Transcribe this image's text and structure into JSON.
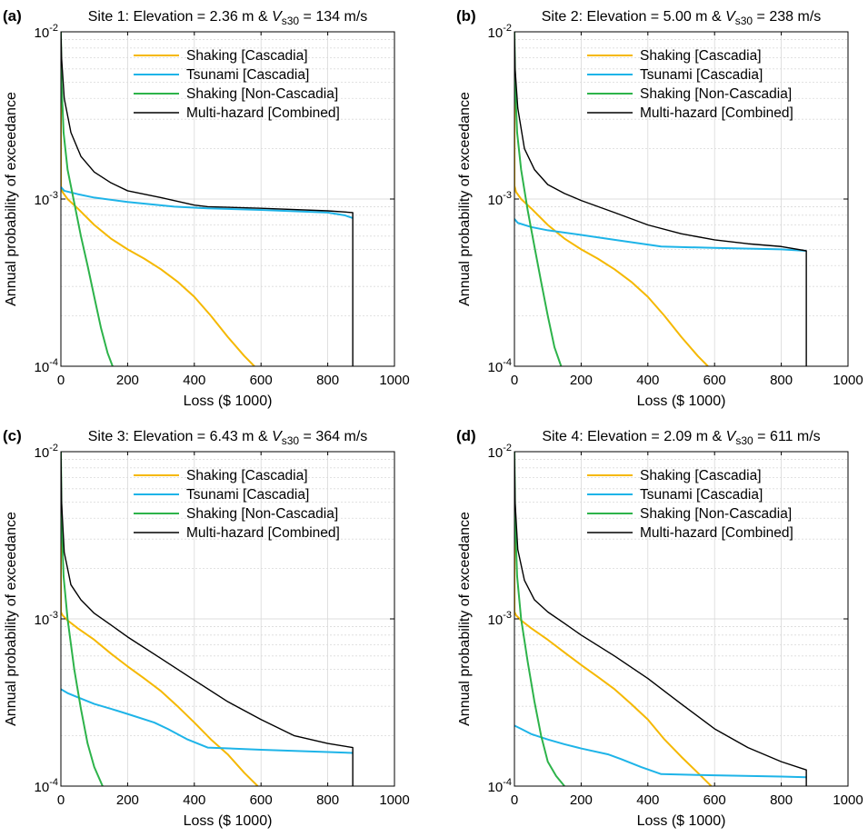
{
  "figure": {
    "ylabel": "Annual probability of exceedance",
    "xlabel": "Loss ($ 1000)"
  },
  "series_styles": [
    {
      "name": "Shaking [Cascadia]",
      "color": "#F5B800"
    },
    {
      "name": "Tsunami [Cascadia]",
      "color": "#1EB4E8"
    },
    {
      "name": "Shaking [Non-Cascadia]",
      "color": "#2DB34A"
    },
    {
      "name": "Multi-hazard [Combined]",
      "color": "#000000"
    }
  ],
  "chart_data": [
    {
      "type": "line",
      "panel_label": "(a)",
      "title_prefix": "Site 1: Elevation = 2.36 m & ",
      "title_var": "V",
      "title_sub": "s30",
      "title_suffix": " = 134 m/s",
      "xlabel": "Loss ($ 1000)",
      "ylabel": "Annual probability of exceedance",
      "xlim": [
        0,
        1000
      ],
      "ylim": [
        0.0001,
        0.01
      ],
      "yscale": "log",
      "xticks": [
        0,
        200,
        400,
        600,
        800,
        1000
      ],
      "grid": true,
      "legend_position": "top-right",
      "series": [
        {
          "name": "Shaking [Cascadia]",
          "x": [
            0,
            0,
            5,
            20,
            50,
            100,
            150,
            200,
            250,
            300,
            350,
            400,
            450,
            500,
            550,
            580
          ],
          "y": [
            0.01,
            0.0012,
            0.0011,
            0.001,
            0.00088,
            0.0007,
            0.00058,
            0.0005,
            0.00044,
            0.00038,
            0.00032,
            0.00026,
            0.0002,
            0.00015,
            0.000115,
            0.0001
          ]
        },
        {
          "name": "Tsunami [Cascadia]",
          "x": [
            0,
            10,
            50,
            100,
            200,
            340,
            440,
            600,
            800,
            850,
            875
          ],
          "y": [
            0.00118,
            0.00112,
            0.00107,
            0.00102,
            0.00096,
            0.0009,
            0.00088,
            0.00086,
            0.00083,
            0.0008,
            0.00077
          ]
        },
        {
          "name": "Shaking [Non-Cascadia]",
          "x": [
            0,
            2,
            8,
            20,
            40,
            60,
            80,
            100,
            120,
            140,
            155
          ],
          "y": [
            0.01,
            0.005,
            0.0025,
            0.0015,
            0.00095,
            0.0006,
            0.0004,
            0.00026,
            0.00017,
            0.00012,
            0.0001
          ]
        },
        {
          "name": "Multi-hazard [Combined]",
          "x": [
            0,
            2,
            10,
            30,
            60,
            100,
            150,
            200,
            300,
            400,
            440,
            600,
            800,
            875,
            875
          ],
          "y": [
            0.01,
            0.007,
            0.004,
            0.0025,
            0.0018,
            0.00145,
            0.00125,
            0.00112,
            0.00102,
            0.00092,
            0.0009,
            0.00088,
            0.00085,
            0.00083,
            0.0001
          ]
        }
      ]
    },
    {
      "type": "line",
      "panel_label": "(b)",
      "title_prefix": "Site 2: Elevation = 5.00 m & ",
      "title_var": "V",
      "title_sub": "s30",
      "title_suffix": " = 238 m/s",
      "xlabel": "Loss ($ 1000)",
      "ylabel": "Annual probability of exceedance",
      "xlim": [
        0,
        1000
      ],
      "ylim": [
        0.0001,
        0.01
      ],
      "yscale": "log",
      "xticks": [
        0,
        200,
        400,
        600,
        800,
        1000
      ],
      "grid": true,
      "legend_position": "top-right",
      "series": [
        {
          "name": "Shaking [Cascadia]",
          "x": [
            0,
            0,
            5,
            20,
            50,
            100,
            150,
            200,
            250,
            300,
            350,
            400,
            450,
            500,
            550,
            580
          ],
          "y": [
            0.01,
            0.0012,
            0.0011,
            0.001,
            0.00088,
            0.0007,
            0.00058,
            0.0005,
            0.00044,
            0.00038,
            0.00032,
            0.00026,
            0.0002,
            0.00015,
            0.000115,
            0.0001
          ]
        },
        {
          "name": "Tsunami [Cascadia]",
          "x": [
            0,
            10,
            50,
            100,
            200,
            300,
            440,
            600,
            800,
            875
          ],
          "y": [
            0.00076,
            0.00072,
            0.00068,
            0.00065,
            0.00061,
            0.00057,
            0.00052,
            0.00051,
            0.0005,
            0.00049
          ]
        },
        {
          "name": "Shaking [Non-Cascadia]",
          "x": [
            0,
            2,
            8,
            20,
            40,
            60,
            80,
            100,
            120,
            140
          ],
          "y": [
            0.01,
            0.005,
            0.0025,
            0.0015,
            0.00085,
            0.00052,
            0.00032,
            0.0002,
            0.00013,
            0.0001
          ]
        },
        {
          "name": "Multi-hazard [Combined]",
          "x": [
            0,
            2,
            10,
            30,
            60,
            100,
            150,
            200,
            300,
            400,
            500,
            600,
            700,
            800,
            875,
            875
          ],
          "y": [
            0.01,
            0.006,
            0.0035,
            0.002,
            0.0015,
            0.00122,
            0.00108,
            0.00098,
            0.00083,
            0.0007,
            0.00062,
            0.00057,
            0.00054,
            0.00052,
            0.00049,
            0.0001
          ]
        }
      ]
    },
    {
      "type": "line",
      "panel_label": "(c)",
      "title_prefix": "Site 3: Elevation = 6.43 m & ",
      "title_var": "V",
      "title_sub": "s30",
      "title_suffix": " = 364 m/s",
      "xlabel": "Loss ($ 1000)",
      "ylabel": "Annual probability of exceedance",
      "xlim": [
        0,
        1000
      ],
      "ylim": [
        0.0001,
        0.01
      ],
      "yscale": "log",
      "xticks": [
        0,
        200,
        400,
        600,
        800,
        1000
      ],
      "grid": true,
      "legend_position": "top-right",
      "series": [
        {
          "name": "Shaking [Cascadia]",
          "x": [
            0,
            0,
            5,
            20,
            50,
            100,
            150,
            200,
            250,
            300,
            350,
            400,
            450,
            500,
            550,
            590
          ],
          "y": [
            0.01,
            0.0011,
            0.00105,
            0.00098,
            0.00088,
            0.00075,
            0.00062,
            0.00052,
            0.00044,
            0.00037,
            0.0003,
            0.00024,
            0.00019,
            0.000155,
            0.00012,
            0.0001
          ]
        },
        {
          "name": "Tsunami [Cascadia]",
          "x": [
            0,
            20,
            50,
            100,
            150,
            200,
            280,
            320,
            380,
            440,
            600,
            800,
            875
          ],
          "y": [
            0.00038,
            0.00036,
            0.00034,
            0.00031,
            0.00029,
            0.00027,
            0.00024,
            0.00022,
            0.00019,
            0.00017,
            0.000165,
            0.00016,
            0.000158
          ]
        },
        {
          "name": "Shaking [Non-Cascadia]",
          "x": [
            0,
            2,
            8,
            20,
            40,
            60,
            80,
            100,
            125
          ],
          "y": [
            0.01,
            0.004,
            0.0018,
            0.001,
            0.0005,
            0.00029,
            0.00018,
            0.00013,
            0.0001
          ]
        },
        {
          "name": "Multi-hazard [Combined]",
          "x": [
            0,
            2,
            10,
            30,
            60,
            100,
            150,
            200,
            300,
            400,
            500,
            600,
            700,
            800,
            875,
            875
          ],
          "y": [
            0.01,
            0.005,
            0.0025,
            0.0016,
            0.0013,
            0.00108,
            0.00092,
            0.00078,
            0.00058,
            0.00043,
            0.00032,
            0.00025,
            0.0002,
            0.00018,
            0.00017,
            0.0001
          ]
        }
      ]
    },
    {
      "type": "line",
      "panel_label": "(d)",
      "title_prefix": "Site 4: Elevation = 2.09 m & ",
      "title_var": "V",
      "title_sub": "s30",
      "title_suffix": " = 611 m/s",
      "xlabel": "Loss ($ 1000)",
      "ylabel": "Annual probability of exceedance",
      "xlim": [
        0,
        1000
      ],
      "ylim": [
        0.0001,
        0.01
      ],
      "yscale": "log",
      "xticks": [
        0,
        200,
        400,
        600,
        800,
        1000
      ],
      "grid": true,
      "legend_position": "top-right",
      "series": [
        {
          "name": "Shaking [Cascadia]",
          "x": [
            0,
            0,
            5,
            20,
            50,
            100,
            150,
            200,
            250,
            300,
            350,
            400,
            450,
            500,
            550,
            590
          ],
          "y": [
            0.01,
            0.0011,
            0.00105,
            0.00098,
            0.00088,
            0.00075,
            0.00063,
            0.00053,
            0.00045,
            0.00038,
            0.00031,
            0.00025,
            0.00019,
            0.00015,
            0.00012,
            0.0001
          ]
        },
        {
          "name": "Tsunami [Cascadia]",
          "x": [
            0,
            20,
            50,
            100,
            150,
            200,
            280,
            320,
            380,
            440,
            600,
            800,
            875
          ],
          "y": [
            0.00023,
            0.00022,
            0.000205,
            0.00019,
            0.000178,
            0.000168,
            0.000155,
            0.000145,
            0.00013,
            0.000118,
            0.000116,
            0.000114,
            0.000113
          ]
        },
        {
          "name": "Shaking [Non-Cascadia]",
          "x": [
            0,
            2,
            8,
            20,
            40,
            60,
            80,
            100,
            125,
            150
          ],
          "y": [
            0.01,
            0.004,
            0.0018,
            0.001,
            0.00055,
            0.00032,
            0.0002,
            0.00014,
            0.000115,
            0.0001
          ]
        },
        {
          "name": "Multi-hazard [Combined]",
          "x": [
            0,
            2,
            10,
            30,
            60,
            100,
            150,
            200,
            300,
            400,
            500,
            600,
            700,
            800,
            875,
            875
          ],
          "y": [
            0.01,
            0.005,
            0.0026,
            0.0017,
            0.0013,
            0.0011,
            0.00094,
            0.0008,
            0.0006,
            0.00044,
            0.00031,
            0.00022,
            0.00017,
            0.00014,
            0.000125,
            0.0001
          ]
        }
      ]
    }
  ]
}
